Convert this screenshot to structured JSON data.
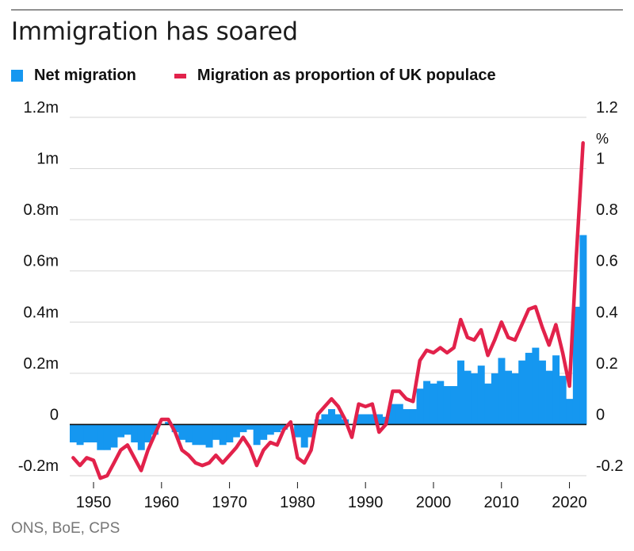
{
  "title": "Immigration has soared",
  "legend": {
    "bars_label": "Net migration",
    "line_label": "Migration as proportion of UK populace"
  },
  "source": "ONS, BoE, CPS",
  "colors": {
    "bars": "#1597f0",
    "line": "#e2224b",
    "grid": "#d6d6d6",
    "zero": "#111111"
  },
  "chart_data": {
    "type": "bar",
    "x_ticks": [
      "1950",
      "1960",
      "1970",
      "1980",
      "1990",
      "2000",
      "2010",
      "2020"
    ],
    "left_axis": {
      "ticks": [
        "1.2m",
        "1m",
        "0.8m",
        "0.6m",
        "0.4m",
        "0.2m",
        "0",
        "-0.2m"
      ],
      "ylim": [
        -0.2,
        1.2
      ],
      "unit": "m"
    },
    "right_axis": {
      "ticks": [
        "1.2",
        "1",
        "0.8",
        "0.6",
        "0.4",
        "0.2",
        "0",
        "-0.2"
      ],
      "unit": "%",
      "ylim": [
        -0.2,
        1.2
      ]
    },
    "grid": true,
    "legend_position": "top-left",
    "series": [
      {
        "name": "Net migration",
        "type": "bar",
        "axis": "left",
        "years": [
          1947,
          1948,
          1949,
          1950,
          1951,
          1952,
          1953,
          1954,
          1955,
          1956,
          1957,
          1958,
          1959,
          1960,
          1961,
          1962,
          1963,
          1964,
          1965,
          1966,
          1967,
          1968,
          1969,
          1970,
          1971,
          1972,
          1973,
          1974,
          1975,
          1976,
          1977,
          1978,
          1979,
          1980,
          1981,
          1982,
          1983,
          1984,
          1985,
          1986,
          1987,
          1988,
          1989,
          1990,
          1991,
          1992,
          1993,
          1994,
          1995,
          1996,
          1997,
          1998,
          1999,
          2000,
          2001,
          2002,
          2003,
          2004,
          2005,
          2006,
          2007,
          2008,
          2009,
          2010,
          2011,
          2012,
          2013,
          2014,
          2015,
          2016,
          2017,
          2018,
          2019,
          2020,
          2021,
          2022
        ],
        "values": [
          -0.07,
          -0.08,
          -0.07,
          -0.07,
          -0.1,
          -0.1,
          -0.09,
          -0.05,
          -0.04,
          -0.07,
          -0.1,
          -0.07,
          -0.04,
          0.0,
          0.01,
          -0.03,
          -0.06,
          -0.07,
          -0.08,
          -0.08,
          -0.09,
          -0.06,
          -0.08,
          -0.07,
          -0.05,
          -0.03,
          -0.02,
          -0.08,
          -0.06,
          -0.04,
          -0.03,
          -0.02,
          0.0,
          -0.05,
          -0.09,
          -0.05,
          0.02,
          0.04,
          0.06,
          0.04,
          0.02,
          0.0,
          0.04,
          0.04,
          0.04,
          0.04,
          0.03,
          0.08,
          0.08,
          0.06,
          0.06,
          0.14,
          0.17,
          0.16,
          0.17,
          0.15,
          0.15,
          0.25,
          0.21,
          0.2,
          0.23,
          0.16,
          0.2,
          0.26,
          0.21,
          0.2,
          0.25,
          0.28,
          0.3,
          0.25,
          0.21,
          0.27,
          0.19,
          0.1,
          0.46,
          0.74
        ]
      },
      {
        "name": "Migration as proportion of UK populace",
        "type": "line",
        "axis": "right",
        "years": [
          1947,
          1948,
          1949,
          1950,
          1951,
          1952,
          1953,
          1954,
          1955,
          1956,
          1957,
          1958,
          1959,
          1960,
          1961,
          1962,
          1963,
          1964,
          1965,
          1966,
          1967,
          1968,
          1969,
          1970,
          1971,
          1972,
          1973,
          1974,
          1975,
          1976,
          1977,
          1978,
          1979,
          1980,
          1981,
          1982,
          1983,
          1984,
          1985,
          1986,
          1987,
          1988,
          1989,
          1990,
          1991,
          1992,
          1993,
          1994,
          1995,
          1996,
          1997,
          1998,
          1999,
          2000,
          2001,
          2002,
          2003,
          2004,
          2005,
          2006,
          2007,
          2008,
          2009,
          2010,
          2011,
          2012,
          2013,
          2014,
          2015,
          2016,
          2017,
          2018,
          2019,
          2020,
          2021,
          2022
        ],
        "values": [
          -0.13,
          -0.16,
          -0.13,
          -0.14,
          -0.21,
          -0.2,
          -0.15,
          -0.1,
          -0.08,
          -0.13,
          -0.18,
          -0.1,
          -0.04,
          0.02,
          0.02,
          -0.03,
          -0.1,
          -0.12,
          -0.15,
          -0.16,
          -0.15,
          -0.12,
          -0.15,
          -0.12,
          -0.09,
          -0.05,
          -0.09,
          -0.16,
          -0.1,
          -0.07,
          -0.08,
          -0.02,
          0.01,
          -0.13,
          -0.15,
          -0.1,
          0.04,
          0.07,
          0.1,
          0.07,
          0.02,
          -0.05,
          0.08,
          0.07,
          0.08,
          -0.03,
          0.0,
          0.13,
          0.13,
          0.1,
          0.09,
          0.25,
          0.29,
          0.28,
          0.3,
          0.28,
          0.3,
          0.41,
          0.34,
          0.33,
          0.37,
          0.27,
          0.33,
          0.4,
          0.34,
          0.33,
          0.39,
          0.45,
          0.46,
          0.38,
          0.31,
          0.39,
          0.28,
          0.15,
          0.65,
          1.1
        ]
      }
    ]
  }
}
